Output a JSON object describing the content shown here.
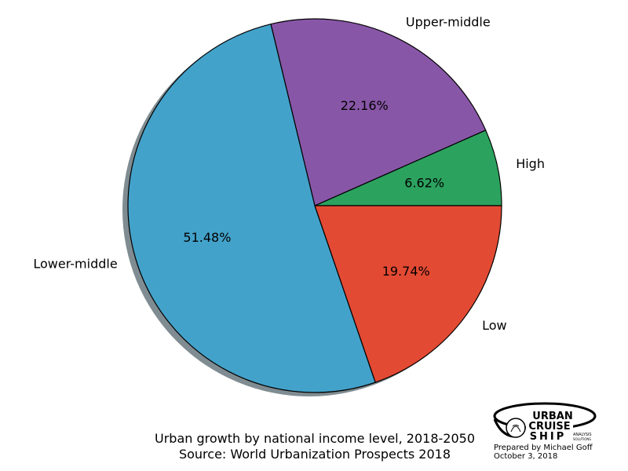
{
  "chart_data": {
    "type": "pie",
    "title": "Urban growth by national income level, 2018-2050",
    "subtitle": "Source: World Urbanization Prospects 2018",
    "slices": [
      {
        "label": "High",
        "value": 6.62,
        "pct_label": "6.62%",
        "color": "#2ca25f"
      },
      {
        "label": "Upper-middle",
        "value": 22.16,
        "pct_label": "22.16%",
        "color": "#8856a7"
      },
      {
        "label": "Lower-middle",
        "value": 51.48,
        "pct_label": "51.48%",
        "color": "#43a2ca"
      },
      {
        "label": "Low",
        "value": 19.74,
        "pct_label": "19.74%",
        "color": "#e34a33"
      }
    ],
    "start_angle_deg": 0,
    "direction": "counterclockwise",
    "shadow": true
  },
  "branding": {
    "logo_words": [
      "URBAN",
      "CRUISE",
      "SHIP"
    ],
    "logo_tagline": [
      "ANALYSIS",
      "SOLUTIONS"
    ],
    "prepared_by": "Prepared by Michael Goff",
    "date": "October 3, 2018"
  }
}
